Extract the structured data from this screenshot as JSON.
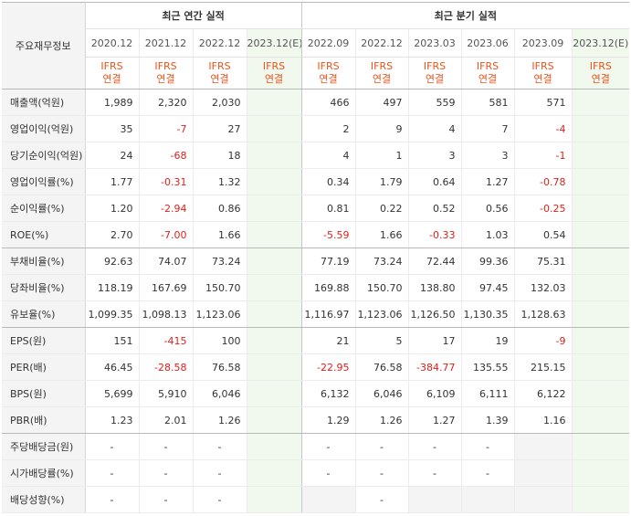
{
  "header": {
    "row_label": "주요재무정보",
    "annual_title": "최근 연간 실적",
    "quarter_title": "최근 분기 실적",
    "periods": [
      "2020.12",
      "2021.12",
      "2022.12",
      "2023.12(E)",
      "2022.09",
      "2022.12",
      "2023.03",
      "2023.06",
      "2023.09",
      "2023.12(E)"
    ],
    "basis_line1": "IFRS",
    "basis_line2": "연결"
  },
  "rows": [
    {
      "label": "매출액(억원)",
      "values": [
        "1,989",
        "2,320",
        "2,030",
        "",
        "466",
        "497",
        "559",
        "581",
        "571",
        ""
      ]
    },
    {
      "label": "영업이익(억원)",
      "values": [
        "35",
        "-7",
        "27",
        "",
        "2",
        "9",
        "4",
        "7",
        "-4",
        ""
      ]
    },
    {
      "label": "당기순이익(억원)",
      "values": [
        "24",
        "-68",
        "18",
        "",
        "4",
        "1",
        "3",
        "3",
        "-1",
        ""
      ]
    },
    {
      "label": "영업이익률(%)",
      "values": [
        "1.77",
        "-0.31",
        "1.32",
        "",
        "0.34",
        "1.79",
        "0.64",
        "1.27",
        "-0.78",
        ""
      ]
    },
    {
      "label": "순이익률(%)",
      "values": [
        "1.20",
        "-2.94",
        "0.86",
        "",
        "0.81",
        "0.22",
        "0.52",
        "0.56",
        "-0.25",
        ""
      ]
    },
    {
      "label": "ROE(%)",
      "values": [
        "2.70",
        "-7.00",
        "1.66",
        "",
        "-5.59",
        "1.66",
        "-0.33",
        "1.03",
        "0.54",
        ""
      ]
    },
    {
      "label": "부채비율(%)",
      "values": [
        "92.63",
        "74.07",
        "73.24",
        "",
        "77.19",
        "73.24",
        "72.44",
        "99.36",
        "75.31",
        ""
      ]
    },
    {
      "label": "당좌비율(%)",
      "values": [
        "118.19",
        "167.69",
        "150.70",
        "",
        "169.88",
        "150.70",
        "138.80",
        "97.45",
        "132.03",
        ""
      ]
    },
    {
      "label": "유보율(%)",
      "values": [
        "1,099.35",
        "1,098.13",
        "1,123.06",
        "",
        "1,116.97",
        "1,123.06",
        "1,126.50",
        "1,130.35",
        "1,128.63",
        ""
      ]
    },
    {
      "label": "EPS(원)",
      "values": [
        "151",
        "-415",
        "100",
        "",
        "21",
        "5",
        "17",
        "19",
        "-9",
        ""
      ]
    },
    {
      "label": "PER(배)",
      "values": [
        "46.45",
        "-28.58",
        "76.58",
        "",
        "-22.95",
        "76.58",
        "-384.77",
        "135.55",
        "215.15",
        ""
      ]
    },
    {
      "label": "BPS(원)",
      "values": [
        "5,699",
        "5,910",
        "6,046",
        "",
        "6,132",
        "6,046",
        "6,109",
        "6,111",
        "6,122",
        ""
      ]
    },
    {
      "label": "PBR(배)",
      "values": [
        "1.23",
        "2.01",
        "1.26",
        "",
        "1.29",
        "1.26",
        "1.27",
        "1.39",
        "1.16",
        ""
      ]
    },
    {
      "label": "주당배당금(원)",
      "values": [
        "-",
        "-",
        "-",
        "",
        "-",
        "-",
        "-",
        "-",
        "",
        ""
      ]
    },
    {
      "label": "시가배당률(%)",
      "values": [
        "-",
        "-",
        "-",
        "",
        "-",
        "-",
        "-",
        "-",
        "",
        ""
      ]
    },
    {
      "label": "배당성향(%)",
      "values": [
        "-",
        "-",
        "-",
        "",
        "",
        "-",
        "",
        "",
        "",
        ""
      ]
    }
  ]
}
